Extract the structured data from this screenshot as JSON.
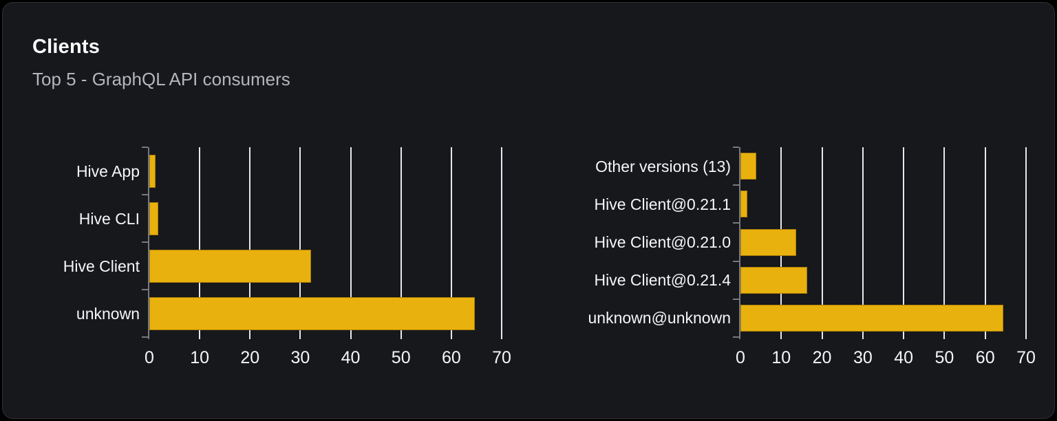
{
  "card": {
    "title": "Clients",
    "subtitle": "Top 5 - GraphQL API consumers"
  },
  "colors": {
    "page_background": "#000000",
    "card_background": "#17181c",
    "card_border": "#2e3036",
    "bar_fill": "#e9b10d",
    "gridline": "#e6e9ef",
    "axis": "#757980",
    "label_text": "#f5f6f7",
    "subtitle_text": "#b4b6bc"
  },
  "chart_data": [
    {
      "type": "bar",
      "orientation": "horizontal",
      "name": "clients-by-name",
      "categories": [
        "Hive App",
        "Hive CLI",
        "Hive Client",
        "unknown"
      ],
      "values": [
        1.2,
        1.8,
        32.1,
        64.6
      ],
      "xlim": [
        0,
        70
      ],
      "xticks": [
        0,
        10,
        20,
        30,
        40,
        50,
        60,
        70
      ],
      "grid": true,
      "legend": false
    },
    {
      "type": "bar",
      "orientation": "horizontal",
      "name": "clients-by-version",
      "categories": [
        "Other versions (13)",
        "Hive Client@0.21.1",
        "Hive Client@0.21.0",
        "Hive Client@0.21.4",
        "unknown@unknown"
      ],
      "values": [
        3.8,
        1.7,
        13.7,
        16.3,
        64.4
      ],
      "xlim": [
        0,
        70
      ],
      "xticks": [
        0,
        10,
        20,
        30,
        40,
        50,
        60,
        70
      ],
      "grid": true,
      "legend": false
    }
  ]
}
